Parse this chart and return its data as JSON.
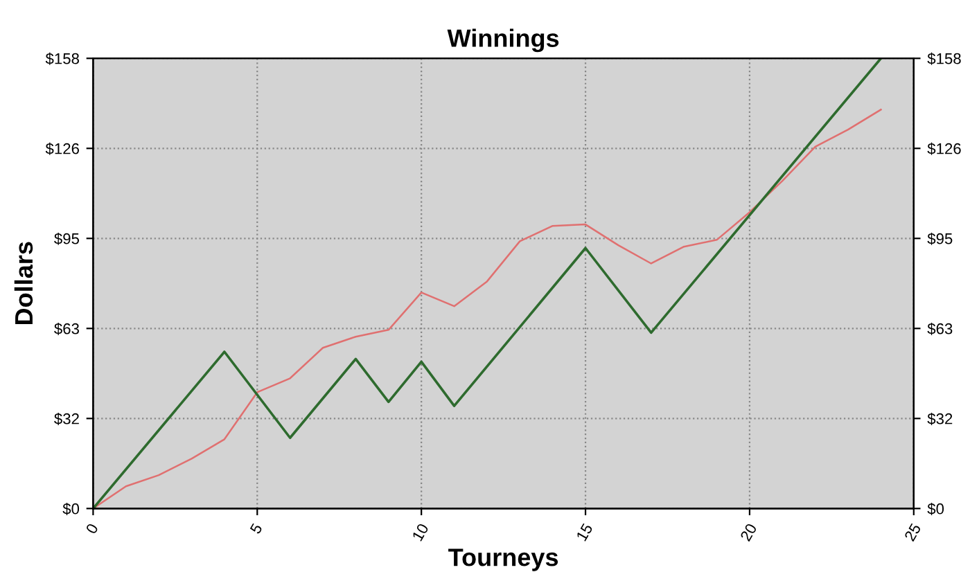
{
  "chart_data": {
    "type": "line",
    "title": "Winnings",
    "xlabel": "Tourneys",
    "ylabel": "Dollars",
    "series": [
      {
        "color": "#e07070",
        "x": [
          0,
          1,
          2,
          3,
          4,
          5,
          6,
          7,
          8,
          9,
          10,
          11,
          12,
          13,
          14,
          15,
          16,
          17,
          18,
          19,
          20,
          21,
          22,
          23,
          24
        ],
        "values": [
          0,
          7.8,
          11.7,
          17.5,
          24.3,
          40.8,
          45.7,
          56.4,
          60.3,
          62.7,
          75.8,
          71,
          79.7,
          93.8,
          99.2,
          99.7,
          92.4,
          86,
          91.9,
          94.3,
          104,
          115,
          127,
          133,
          140
        ]
      },
      {
        "color": "#2e6b2e",
        "x": [
          0,
          4,
          6,
          8,
          9,
          10,
          11,
          15,
          17,
          24
        ],
        "values": [
          0,
          55,
          24.8,
          52.5,
          37.4,
          51.5,
          36,
          91.4,
          61.7,
          158
        ]
      }
    ],
    "xlim": [
      0,
      25
    ],
    "xticks": [
      0,
      5,
      10,
      15,
      20,
      25
    ],
    "ylim": [
      0,
      158
    ],
    "yticks": [
      {
        "value": 0,
        "label": "$0"
      },
      {
        "value": 31.6,
        "label": "$32"
      },
      {
        "value": 63.2,
        "label": "$63"
      },
      {
        "value": 94.8,
        "label": "$95"
      },
      {
        "value": 126.4,
        "label": "$126"
      },
      {
        "value": 158,
        "label": "$158"
      }
    ],
    "y2lim": [
      0,
      158
    ],
    "y2ticks": [
      {
        "value": 0,
        "label": "$0"
      },
      {
        "value": 31.6,
        "label": "$32"
      },
      {
        "value": 63.2,
        "label": "$63"
      },
      {
        "value": 94.8,
        "label": "$95"
      },
      {
        "value": 126.4,
        "label": "$126"
      },
      {
        "value": 158,
        "label": "$158"
      }
    ],
    "grid": true,
    "marker": "none",
    "line_style": "solid"
  }
}
